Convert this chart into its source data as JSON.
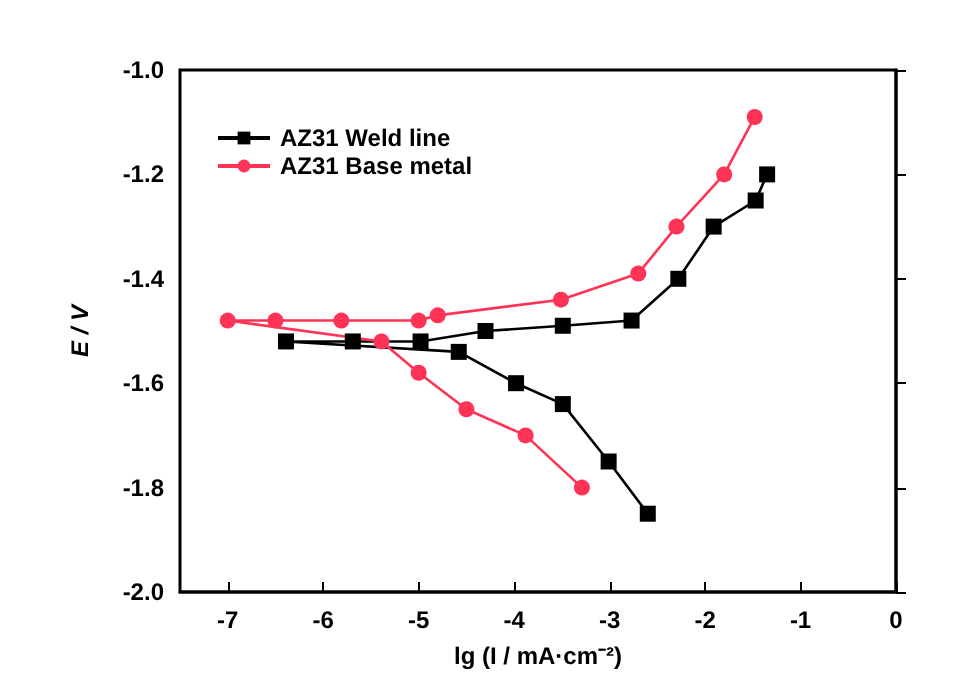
{
  "chart_data": {
    "type": "line",
    "xlabel": "lg (I / mA·cm⁻²)",
    "ylabel": "E / V",
    "xlim": [
      -7.5,
      0
    ],
    "ylim": [
      -2.0,
      -1.0
    ],
    "xticks": [
      -7,
      -6,
      -5,
      -4,
      -3,
      -2,
      -1,
      0
    ],
    "yticks": [
      {
        "value": -2.0,
        "label": "-2.0"
      },
      {
        "value": -1.8,
        "label": "-1.8"
      },
      {
        "value": -1.6,
        "label": "-1.6"
      },
      {
        "value": -1.4,
        "label": "-1.4"
      },
      {
        "value": -1.2,
        "label": "-1.2"
      },
      {
        "value": -1.0,
        "label": "-1.0"
      }
    ],
    "grid": false,
    "legend": "top left",
    "series": [
      {
        "name": "AZ31 Weld line",
        "color": "#000000",
        "marker": "square",
        "x": [
          -1.35,
          -1.47,
          -1.91,
          -2.28,
          -2.77,
          -3.49,
          -4.3,
          -4.98,
          -5.69,
          -6.39,
          -4.58,
          -3.98,
          -3.49,
          -3.01,
          -2.6
        ],
        "values": [
          -1.2,
          -1.25,
          -1.3,
          -1.4,
          -1.48,
          -1.49,
          -1.5,
          -1.52,
          -1.52,
          -1.52,
          -1.54,
          -1.6,
          -1.64,
          -1.75,
          -1.85
        ]
      },
      {
        "name": "AZ31 Base metal",
        "color": "#ff3355",
        "marker": "circle",
        "x": [
          -1.48,
          -1.8,
          -2.3,
          -2.7,
          -3.51,
          -4.8,
          -5.0,
          -5.81,
          -6.5,
          -7.0,
          -5.39,
          -5.0,
          -4.5,
          -3.88,
          -3.29
        ],
        "values": [
          -1.09,
          -1.2,
          -1.3,
          -1.39,
          -1.44,
          -1.47,
          -1.48,
          -1.48,
          -1.48,
          -1.48,
          -1.52,
          -1.58,
          -1.65,
          -1.7,
          -1.8
        ]
      }
    ]
  }
}
